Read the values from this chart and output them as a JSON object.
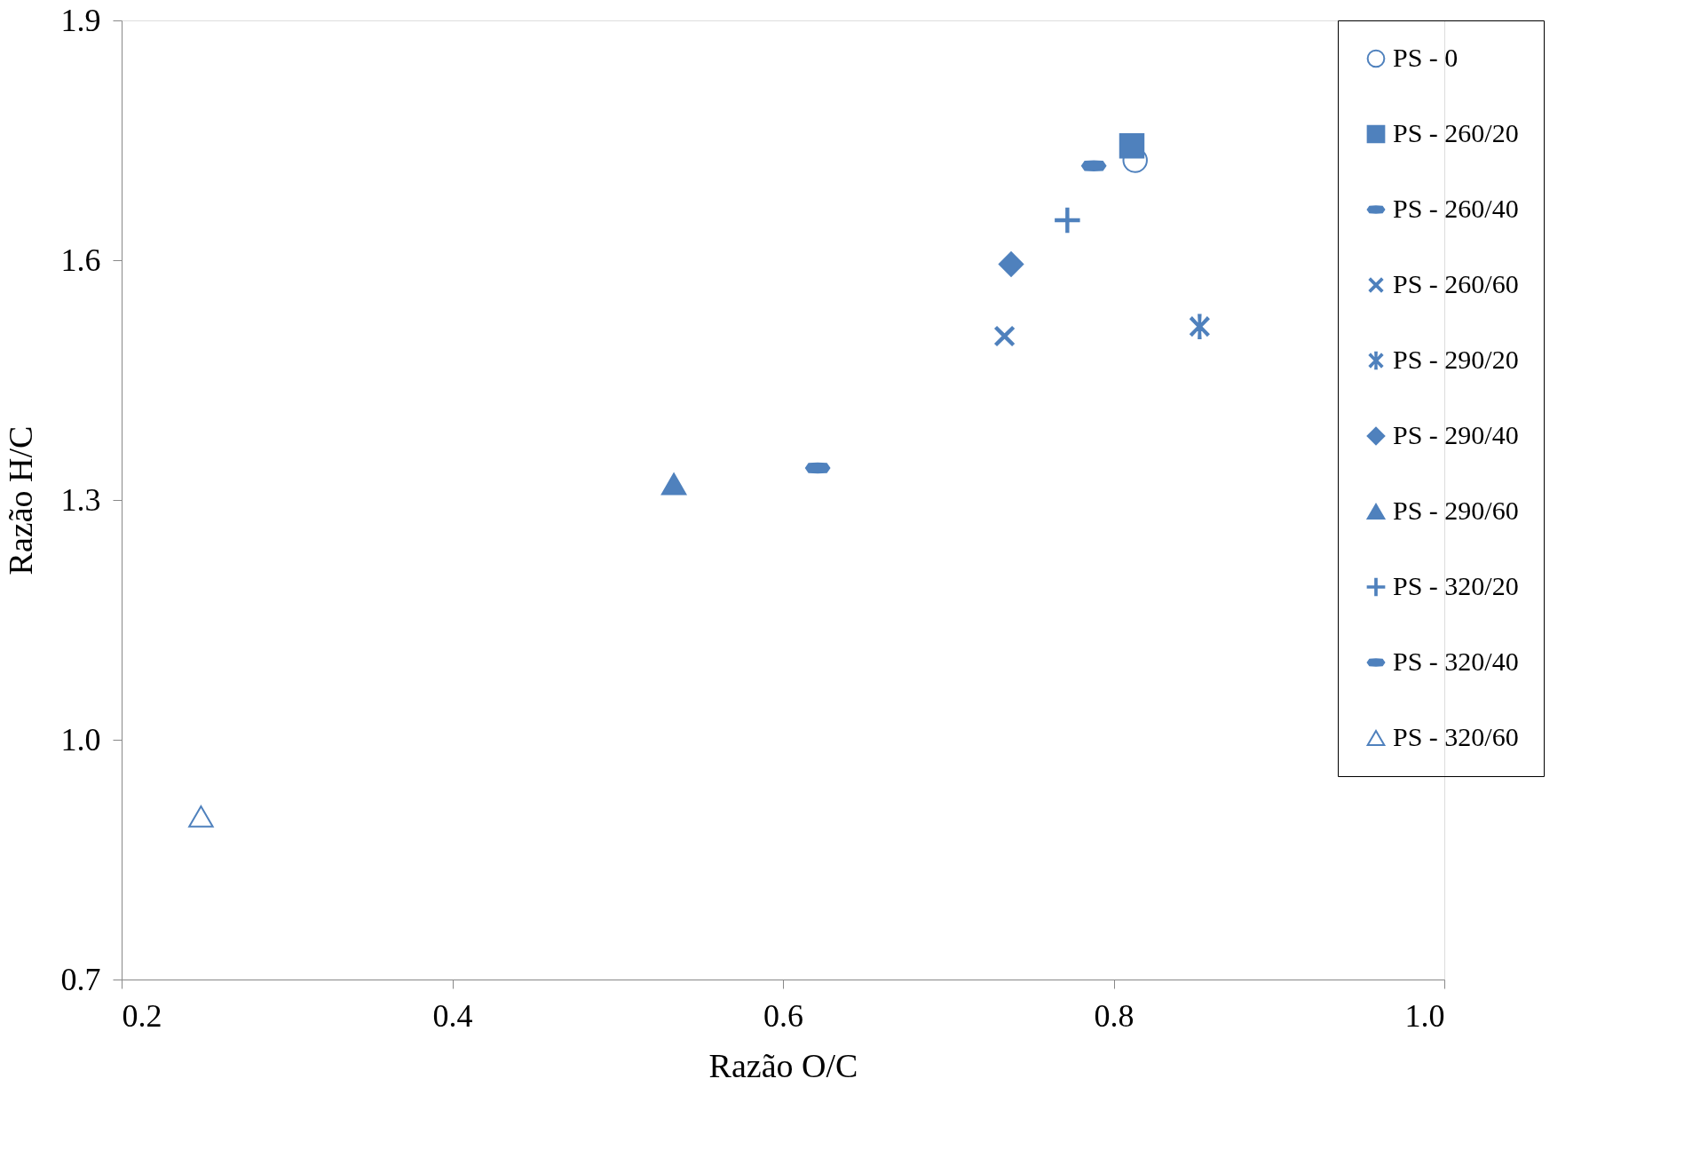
{
  "chart_data": {
    "type": "scatter",
    "xlabel": "Razão O/C",
    "ylabel": "Razão H/C",
    "xlim": [
      0.2,
      1.0
    ],
    "xticks": [
      0.2,
      0.4,
      0.6,
      0.8,
      {
        "value": 1.0,
        "label": "1.0"
      }
    ],
    "ylim": [
      0.7,
      1.9
    ],
    "yticks": [
      0.7,
      {
        "value": 1.0,
        "label": "1.0"
      },
      1.3,
      1.6,
      1.9
    ],
    "grid": false,
    "legend": "right",
    "series": [
      {
        "name": "PS - 0",
        "color": "#4f81bd",
        "marker": "circle-open",
        "x": [
          0.813
        ],
        "values": [
          1.725
        ]
      },
      {
        "name": "PS - 260/20",
        "color": "#4f81bd",
        "marker": "square",
        "x": [
          0.811
        ],
        "values": [
          1.743
        ]
      },
      {
        "name": "PS - 260/40",
        "color": "#4f81bd",
        "x": [
          0.788
        ],
        "values": [
          1.718
        ]
      },
      {
        "name": "PS - 260/60",
        "color": "#4f81bd",
        "marker": "x",
        "x": [
          0.734
        ],
        "values": [
          1.505
        ]
      },
      {
        "name": "PS - 290/20",
        "color": "#4f81bd",
        "marker": "asterisk",
        "x": [
          0.852
        ],
        "values": [
          1.517
        ]
      },
      {
        "name": "PS - 290/40",
        "color": "#4f81bd",
        "marker": "diamond",
        "x": [
          0.738
        ],
        "values": [
          1.595
        ]
      },
      {
        "name": "PS - 290/60",
        "color": "#4f81bd",
        "marker": "triangle",
        "x": [
          0.534
        ],
        "values": [
          1.32
        ]
      },
      {
        "name": "PS - 320/20",
        "color": "#4f81bd",
        "marker": "cross",
        "x": [
          0.772
        ],
        "values": [
          1.65
        ]
      },
      {
        "name": "PS - 320/40",
        "color": "#4f81bd",
        "x": [
          0.621
        ],
        "values": [
          1.34
        ]
      },
      {
        "name": "PS - 320/60",
        "color": "#4f81bd",
        "marker": "triangle-open",
        "x": [
          0.248
        ],
        "values": [
          0.904
        ]
      }
    ]
  }
}
